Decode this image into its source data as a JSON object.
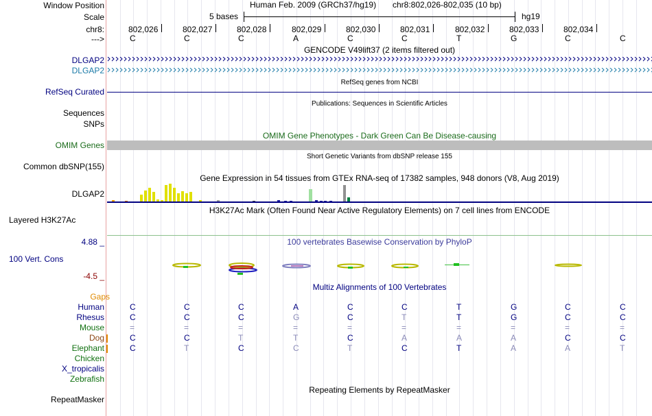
{
  "labels": {
    "window_position": "Window Position",
    "scale": "Scale",
    "chr": "chr8:",
    "arrow": "--->",
    "dlgap2_a": "DLGAP2",
    "dlgap2_b": "DLGAP2",
    "refseq": "RefSeq Curated",
    "sequences": "Sequences",
    "snps": "SNPs",
    "omim": "OMIM Genes",
    "common_dbsnp": "Common dbSNP(155)",
    "gtex": "DLGAP2",
    "h3k27ac": "Layered H3K27Ac",
    "cons_max": "4.88 _",
    "cons_name": "100 Vert. Cons",
    "cons_min": "-4.5 _",
    "gaps": "Gaps",
    "human": "Human",
    "rhesus": "Rhesus",
    "mouse": "Mouse",
    "dog": "Dog",
    "elephant": "Elephant",
    "chicken": "Chicken",
    "xtrop": "X_tropicalis",
    "zebrafish": "Zebrafish",
    "repeatmasker": "RepeatMasker"
  },
  "header": {
    "title": "Human Feb. 2009 (GRCh37/hg19)",
    "position": "chr8:802,026-802,035 (10 bp)",
    "scale_text": "5 bases",
    "assembly": "hg19"
  },
  "ruler_ticks": [
    "802,026",
    "802,027",
    "802,028",
    "802,029",
    "802,030",
    "802,031",
    "802,032",
    "802,033",
    "802,034"
  ],
  "bases": [
    "C",
    "C",
    "C",
    "A",
    "C",
    "C",
    "T",
    "G",
    "C",
    "C"
  ],
  "track_titles": {
    "gencode": "GENCODE V49lift37 (2 items filtered out)",
    "refseq": "RefSeq genes from NCBI",
    "publications": "Publications: Sequences in Scientific Articles",
    "omim": "OMIM Gene Phenotypes - Dark Green Can Be Disease-causing",
    "dbsnp": "Short Genetic Variants from dbSNP release 155",
    "gtex": "Gene Expression in 54 tissues from GTEx RNA-seq of 17382 samples, 948 donors (V8, Aug 2019)",
    "h3k27ac": "H3K27Ac Mark (Often Found Near Active Regulatory Elements) on 7 cell lines from ENCODE",
    "phylop": "100 vertebrates Basewise Conservation by PhyloP",
    "multiz": "Multiz Alignments of 100 Vertebrates",
    "repeatmasker": "Repeating Elements by RepeatMasker"
  },
  "alignment": {
    "rhesus": [
      "C",
      "C",
      "C",
      "G",
      "C",
      "T",
      "T",
      "G",
      "C",
      "C"
    ],
    "mouse": [
      "=",
      "=",
      "=",
      "=",
      "=",
      "=",
      "=",
      "=",
      "=",
      "="
    ],
    "dog": [
      "C",
      "C",
      "T",
      "T",
      "C",
      "A",
      "A",
      "A",
      "C",
      "C"
    ],
    "elephant": [
      "C",
      "T",
      "C",
      "C",
      "T",
      "C",
      "T",
      "A",
      "A",
      "T"
    ]
  },
  "colors": {
    "dark_blue": "#000080",
    "teal": "#1c7ba8",
    "omim_green": "#1a6b1a",
    "species_green": "#107010",
    "gray_text": "#8a8ab8",
    "gaps_orange": "#e08a00",
    "omim_bar": "#bdbdbd"
  }
}
